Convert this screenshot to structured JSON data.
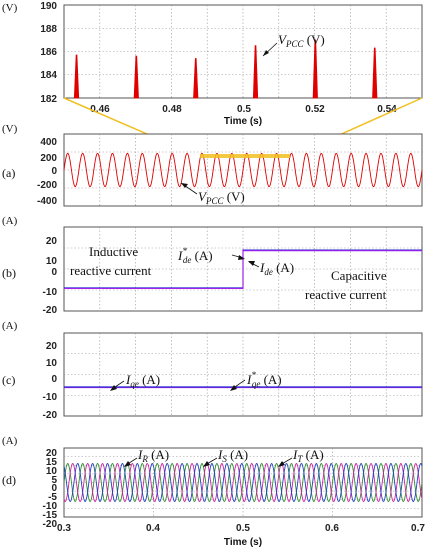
{
  "chart_data": [
    {
      "id": "zoom",
      "type": "line",
      "unit_label": "(V)",
      "xlabel": "Time (s)",
      "xlim": [
        0.45,
        0.55
      ],
      "ylim": [
        182,
        190
      ],
      "xticks": [
        "0.46",
        "0.48",
        "0.5",
        "0.52",
        "0.54"
      ],
      "yticks": [
        "182",
        "184",
        "186",
        "188",
        "190"
      ],
      "series": [
        {
          "name": "V_PCC (V)",
          "color": "#e00000",
          "peaks": [
            {
              "x": 0.4535,
              "y": 185.7
            },
            {
              "x": 0.4702,
              "y": 185.6
            },
            {
              "x": 0.4868,
              "y": 185.4
            },
            {
              "x": 0.5035,
              "y": 186.5
            },
            {
              "x": 0.5202,
              "y": 187.0
            },
            {
              "x": 0.5368,
              "y": 186.3
            }
          ]
        }
      ],
      "annotation": {
        "main": "V",
        "sub": "PCC",
        "rest": " (V)"
      }
    },
    {
      "id": "a",
      "panel": "(a)",
      "type": "line",
      "unit_label": "(V)",
      "xlim": [
        0.3,
        0.7
      ],
      "ylim": [
        -400,
        400
      ],
      "yticks": [
        "400",
        "200",
        "0",
        "-200",
        "-400"
      ],
      "series": [
        {
          "name": "V_PCC (V)",
          "color": "#e00000",
          "amplitude": 185,
          "frequency_hz": 60
        }
      ],
      "annotation": {
        "main": "V",
        "sub": "PCC",
        "rest": " (V)"
      }
    },
    {
      "id": "b",
      "panel": "(b)",
      "type": "line",
      "unit_label": "(A)",
      "xlim": [
        0.3,
        0.7
      ],
      "ylim": [
        -20,
        20
      ],
      "yticks": [
        "20",
        "10",
        "0",
        "-10",
        "-20"
      ],
      "step_time": 0.5,
      "series": [
        {
          "name": "I*de (A)",
          "color": "#2222cc",
          "before": -9,
          "after": 9
        },
        {
          "name": "Ide (A)",
          "color": "#a020f0",
          "before": -9,
          "after": 9
        }
      ],
      "annotations": {
        "left_line1": "Inductive",
        "left_line2": "reactive current",
        "right_line1": "Capacitive",
        "right_line2": "reactive current",
        "ref": {
          "main": "I",
          "sup": "*",
          "sub": "de",
          "rest": " (A)"
        },
        "meas": {
          "main": "I",
          "sub": "de",
          "rest": " (A)"
        }
      }
    },
    {
      "id": "c",
      "panel": "(c)",
      "type": "line",
      "unit_label": "(A)",
      "xlim": [
        0.3,
        0.7
      ],
      "ylim": [
        -20,
        20
      ],
      "yticks": [
        "20",
        "10",
        "0",
        "-10",
        "-20"
      ],
      "series": [
        {
          "name": "Iqe (A)",
          "color": "#a020f0",
          "value": -6
        },
        {
          "name": "I*qe (A)",
          "color": "#2222cc",
          "value": -6
        }
      ],
      "annotations": {
        "meas": {
          "main": "I",
          "sub": "qe",
          "rest": " (A)"
        },
        "ref": {
          "main": "I",
          "sup": "*",
          "sub": "qe",
          "rest": " (A)"
        }
      }
    },
    {
      "id": "d",
      "panel": "(d)",
      "type": "line",
      "unit_label": "(A)",
      "xlabel": "Time (s)",
      "xlim": [
        0.3,
        0.7
      ],
      "ylim": [
        -20,
        20
      ],
      "xticks": [
        "0.3",
        "0.4",
        "0.5",
        "0.6",
        "0.7"
      ],
      "yticks": [
        "20",
        "15",
        "10",
        "5",
        "0",
        "-5",
        "-10",
        "-15",
        "-20"
      ],
      "series": [
        {
          "name": "IR (A)",
          "color": "#2d8f2d",
          "amplitude": 11,
          "frequency_hz": 60,
          "phase_deg": 0
        },
        {
          "name": "IS (A)",
          "color": "#d020a0",
          "amplitude": 11,
          "frequency_hz": 60,
          "phase_deg": -120
        },
        {
          "name": "IT (A)",
          "color": "#2040c0",
          "amplitude": 11,
          "frequency_hz": 60,
          "phase_deg": 120
        }
      ],
      "annotations": {
        "r": {
          "main": "I",
          "sub": "R",
          "rest": " (A)"
        },
        "s": {
          "main": "I",
          "sub": "S",
          "rest": " (A)"
        },
        "t": {
          "main": "I",
          "sub": "T",
          "rest": " (A)"
        }
      }
    }
  ],
  "colors": {
    "zoom_band": "#f0c020",
    "frame": "#555555"
  }
}
